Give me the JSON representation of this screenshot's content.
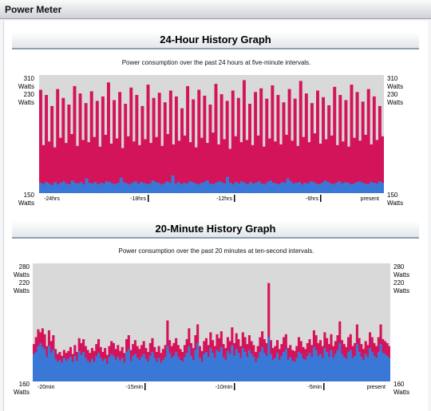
{
  "window": {
    "title": "Power Meter"
  },
  "graphs": [
    {
      "title": "24-Hour History Graph",
      "subtitle": "Power consumption over the past 24 hours at five-minute intervals.",
      "y_top_labels": [
        "310",
        "Watts",
        "230",
        "Watts"
      ],
      "y_bottom_labels": [
        "150",
        "Watts"
      ],
      "x_ticks": [
        "-24hrs",
        "-18hrs",
        "-12hrs",
        "-6hrs",
        "present"
      ]
    },
    {
      "title": "20-Minute History Graph",
      "subtitle": "Power consumption over the past 20 minutes at ten-second intervals.",
      "y_top_labels": [
        "280",
        "Watts",
        "220",
        "Watts"
      ],
      "y_bottom_labels": [
        "160",
        "Watts"
      ],
      "x_ticks": [
        "-20min",
        "-15min",
        "-10min",
        "-5min",
        "present"
      ]
    }
  ],
  "chart_data": [
    {
      "type": "bar",
      "title": "24-Hour History Graph",
      "subtitle": "Power consumption over the past 24 hours at five-minute intervals.",
      "ylim": [
        150,
        310
      ],
      "x_tick_labels": [
        "-24hrs",
        "-18hrs",
        "-12hrs",
        "-6hrs",
        "present"
      ],
      "series": [
        {
          "values_desc": "peak",
          "color": "#d4145a",
          "values": [
            290,
            215,
            283,
            220,
            268,
            212,
            291,
            225,
            279,
            218,
            270,
            230,
            295,
            214,
            285,
            222,
            272,
            219,
            288,
            226,
            275,
            213,
            281,
            229,
            300,
            217,
            276,
            224,
            287,
            211,
            271,
            227,
            293,
            220,
            283,
            215,
            268,
            223,
            297,
            218,
            279,
            226,
            286,
            214,
            273,
            230,
            289,
            216,
            281,
            221,
            265,
            228,
            295,
            219,
            277,
            212,
            290,
            225,
            282,
            218,
            270,
            232,
            298,
            216,
            284,
            223,
            275,
            210,
            289,
            227,
            279,
            219,
            303,
            222,
            271,
            215,
            287,
            228,
            292,
            213,
            278,
            224,
            296,
            220,
            283,
            216,
            273,
            229,
            291,
            221,
            278,
            214,
            302,
            226,
            285,
            219,
            272,
            231,
            289,
            217,
            280,
            223,
            269,
            228,
            294,
            215,
            283,
            220,
            276,
            213,
            297,
            225,
            287,
            221,
            274,
            229,
            291,
            216,
            281,
            222,
            268,
            227
          ]
        },
        {
          "values_desc": "base",
          "color": "#3a78d8",
          "values": [
            164,
            162,
            165,
            163,
            161,
            165,
            162,
            164,
            166,
            163,
            162,
            167,
            164,
            163,
            165,
            162,
            170,
            164,
            163,
            165,
            162,
            164,
            163,
            166,
            165,
            163,
            162,
            164,
            171,
            165,
            163,
            162,
            164,
            166,
            163,
            165,
            164,
            162,
            163,
            167,
            165,
            164,
            162,
            163,
            166,
            164,
            174,
            163,
            165,
            162,
            164,
            163,
            166,
            165,
            163,
            162,
            164,
            165,
            167,
            163,
            162,
            164,
            166,
            165,
            163,
            172,
            164,
            162,
            165,
            163,
            166,
            164,
            162,
            165,
            163,
            164,
            166,
            163,
            162,
            165,
            167,
            164,
            163,
            162,
            165,
            164,
            170,
            166,
            163,
            164,
            165,
            162,
            164,
            163,
            166,
            165,
            163,
            162,
            164,
            167,
            165,
            163,
            162,
            164,
            166,
            163,
            165,
            164,
            162,
            163,
            165,
            166,
            164,
            163,
            162,
            165,
            164,
            163,
            166,
            164
          ]
        }
      ]
    },
    {
      "type": "bar",
      "title": "20-Minute History Graph",
      "subtitle": "Power consumption over the past 20 minutes at ten-second intervals.",
      "ylim": [
        160,
        280
      ],
      "x_tick_labels": [
        "-20min",
        "-15min",
        "-10min",
        "-5min",
        "present"
      ],
      "series": [
        {
          "values_desc": "peak",
          "color": "#d4145a",
          "values": [
            198,
            205,
            213,
            210,
            214,
            208,
            196,
            212,
            201,
            207,
            193,
            188,
            190,
            186,
            192,
            189,
            191,
            195,
            188,
            197,
            190,
            204,
            199,
            203,
            196,
            192,
            189,
            194,
            191,
            198,
            203,
            195,
            190,
            194,
            187,
            196,
            201,
            199,
            193,
            197,
            191,
            195,
            189,
            203,
            207,
            192,
            198,
            202,
            196,
            193,
            197,
            201,
            194,
            190,
            199,
            204,
            195,
            190,
            196,
            189,
            193,
            197,
            222,
            202,
            196,
            199,
            204,
            197,
            193,
            190,
            197,
            203,
            214,
            199,
            194,
            207,
            218,
            196,
            191,
            201,
            204,
            197,
            210,
            202,
            196,
            208,
            204,
            211,
            198,
            194,
            205,
            201,
            215,
            199,
            209,
            203,
            196,
            210,
            205,
            198,
            207,
            201,
            197,
            190,
            196,
            205,
            211,
            203,
            199,
            260,
            202,
            194,
            196,
            202,
            193,
            198,
            205,
            208,
            194,
            197,
            192,
            191,
            196,
            205,
            201,
            195,
            193,
            199,
            203,
            197,
            212,
            207,
            199,
            202,
            196,
            210,
            204,
            198,
            208,
            196,
            201,
            207,
            221,
            202,
            198,
            195,
            205,
            208,
            196,
            199,
            218,
            204,
            198,
            193,
            201,
            197,
            210,
            205,
            199,
            196,
            205,
            218,
            203,
            201,
            199,
            196
          ]
        },
        {
          "values_desc": "base",
          "color": "#3a78d8",
          "values": [
            188,
            190,
            196,
            199,
            195,
            193,
            185,
            196,
            189,
            192,
            183,
            180,
            182,
            179,
            184,
            181,
            183,
            185,
            180,
            186,
            181,
            191,
            187,
            190,
            184,
            181,
            179,
            183,
            180,
            186,
            189,
            184,
            181,
            183,
            178,
            185,
            188,
            186,
            182,
            185,
            181,
            184,
            179,
            190,
            193,
            181,
            186,
            188,
            184,
            182,
            185,
            188,
            183,
            180,
            186,
            190,
            184,
            180,
            184,
            179,
            182,
            185,
            196,
            189,
            184,
            186,
            190,
            185,
            182,
            180,
            185,
            189,
            196,
            186,
            182,
            192,
            199,
            184,
            180,
            188,
            190,
            185,
            194,
            189,
            184,
            192,
            190,
            195,
            185,
            182,
            191,
            188,
            197,
            186,
            193,
            189,
            184,
            194,
            190,
            185,
            192,
            188,
            185,
            180,
            184,
            190,
            195,
            189,
            186,
            205,
            188,
            182,
            184,
            189,
            182,
            186,
            190,
            193,
            182,
            185,
            181,
            180,
            184,
            190,
            188,
            183,
            182,
            186,
            189,
            185,
            195,
            192,
            186,
            188,
            184,
            194,
            190,
            185,
            192,
            184,
            188,
            192,
            199,
            188,
            185,
            183,
            190,
            192,
            184,
            186,
            198,
            190,
            185,
            182,
            188,
            185,
            194,
            190,
            186,
            184,
            190,
            198,
            189,
            188,
            186,
            184
          ]
        }
      ]
    }
  ]
}
